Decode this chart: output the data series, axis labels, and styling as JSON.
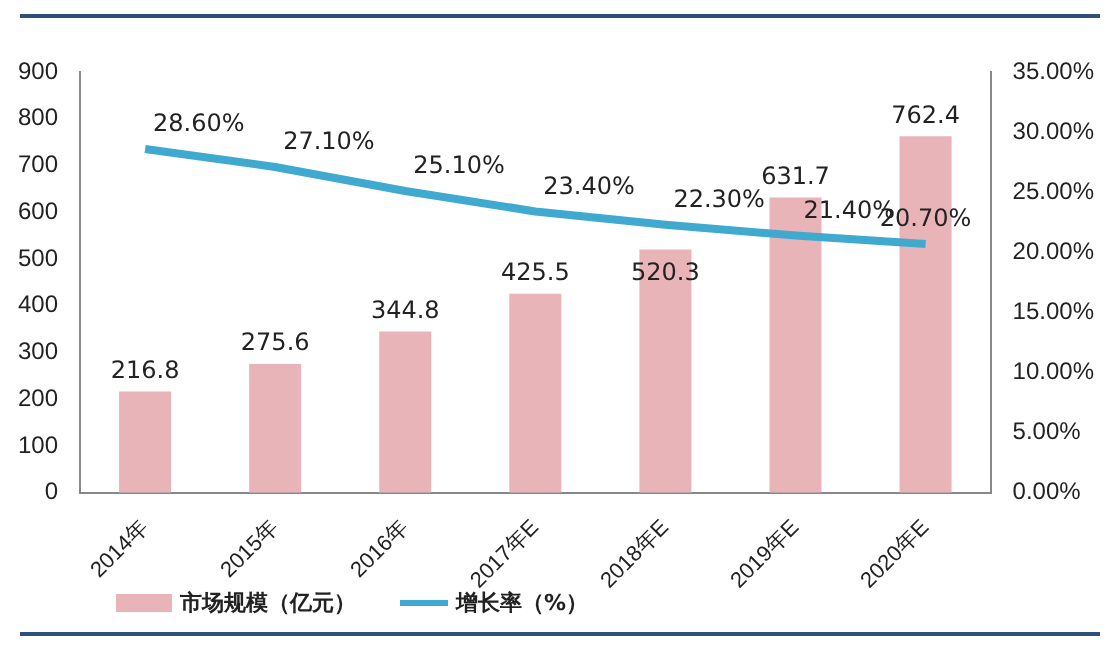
{
  "chart_data": {
    "type": "bar",
    "categories": [
      "2014年",
      "2015年",
      "2016年",
      "2017年E",
      "2018年E",
      "2019年E",
      "2020年E"
    ],
    "series": [
      {
        "name": "市场规模（亿元）",
        "color": "#e8b4b8",
        "values": [
          216.8,
          275.6,
          344.8,
          425.5,
          520.3,
          631.7,
          762.4
        ],
        "value_labels": [
          "216.8",
          "275.6",
          "344.8",
          "425.5",
          "520.3",
          "631.7",
          "762.4"
        ]
      },
      {
        "name": "增长率（%）",
        "type": "line",
        "axis": "y2",
        "color": "#3fa9d0",
        "values": [
          28.6,
          27.1,
          25.1,
          23.4,
          22.3,
          21.4,
          20.7
        ],
        "value_labels": [
          "28.60%",
          "27.10%",
          "25.10%",
          "23.40%",
          "22.30%",
          "21.40%",
          "20.70%"
        ]
      }
    ],
    "ylim": [
      0,
      900
    ],
    "yticks": [
      0,
      100,
      200,
      300,
      400,
      500,
      600,
      700,
      800,
      900
    ],
    "y2lim": [
      0,
      35
    ],
    "y2ticks": [
      {
        "value": 0,
        "label": "0.00%"
      },
      {
        "value": 5,
        "label": "5.00%"
      },
      {
        "value": 10,
        "label": "10.00%"
      },
      {
        "value": 15,
        "label": "15.00%"
      },
      {
        "value": 20,
        "label": "20.00%"
      },
      {
        "value": 25,
        "label": "25.00%"
      },
      {
        "value": 30,
        "label": "30.00%"
      },
      {
        "value": 35,
        "label": "35.00%"
      }
    ],
    "grid": false,
    "legend": "bottom left",
    "marker": "none",
    "line_style": "solid"
  }
}
